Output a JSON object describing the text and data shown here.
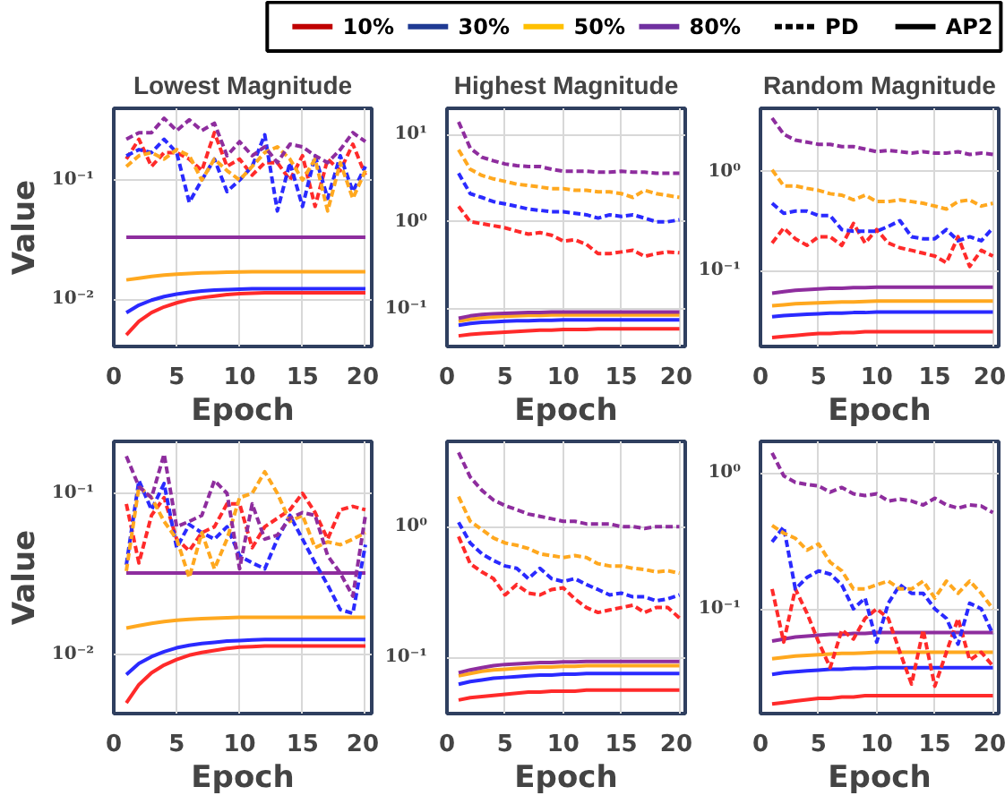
{
  "chart_data": [
    {
      "type": "other",
      "legend": "top",
      "series": [
        {
          "name": "10%",
          "color": "#c00000",
          "line_style": "solid"
        },
        {
          "name": "30%",
          "color": "#1f3a93",
          "line_style": "solid"
        },
        {
          "name": "50%",
          "color": "#ffc000",
          "line_style": "solid"
        },
        {
          "name": "80%",
          "color": "#7030a0",
          "line_style": "solid"
        },
        {
          "name": "PD",
          "color": "#000000",
          "line_style": "dashed"
        },
        {
          "name": "AP2",
          "color": "#000000",
          "line_style": "solid"
        }
      ]
    },
    {
      "type": "line",
      "title": "Lowest Magnitude",
      "xlabel": "Epoch",
      "ylabel": "Value",
      "log": true,
      "grid": true,
      "x": [
        1,
        2,
        3,
        4,
        5,
        6,
        7,
        8,
        9,
        10,
        11,
        12,
        13,
        14,
        15,
        16,
        17,
        18,
        19,
        20
      ],
      "xlim": [
        0,
        20.5
      ],
      "xticks": [
        0,
        5,
        10,
        15,
        20
      ],
      "ylim": [
        0.004,
        0.4
      ],
      "yticks": [
        {
          "value": 0.01,
          "label": "10⁻²"
        },
        {
          "value": 0.1,
          "label": "10⁻¹"
        }
      ],
      "series": [
        {
          "color": "#ff2a2a",
          "line_style": "dashed",
          "values": [
            0.15,
            0.22,
            0.13,
            0.17,
            0.17,
            0.15,
            0.12,
            0.25,
            0.13,
            0.15,
            0.11,
            0.14,
            0.14,
            0.1,
            0.16,
            0.06,
            0.15,
            0.12,
            0.2,
            0.11
          ]
        },
        {
          "color": "#2a2aff",
          "line_style": "dashed",
          "values": [
            0.16,
            0.18,
            0.17,
            0.22,
            0.17,
            0.065,
            0.1,
            0.15,
            0.08,
            0.1,
            0.13,
            0.24,
            0.055,
            0.14,
            0.06,
            0.16,
            0.07,
            0.16,
            0.08,
            0.13
          ]
        },
        {
          "color": "#ffa81f",
          "line_style": "dashed",
          "values": [
            0.13,
            0.16,
            0.17,
            0.15,
            0.18,
            0.16,
            0.1,
            0.15,
            0.12,
            0.1,
            0.13,
            0.17,
            0.19,
            0.15,
            0.1,
            0.15,
            0.055,
            0.14,
            0.07,
            0.12
          ]
        },
        {
          "color": "#8e2d9e",
          "line_style": "dashed",
          "values": [
            0.22,
            0.25,
            0.25,
            0.33,
            0.26,
            0.32,
            0.26,
            0.3,
            0.16,
            0.21,
            0.16,
            0.19,
            0.14,
            0.2,
            0.19,
            0.16,
            0.14,
            0.18,
            0.25,
            0.21
          ]
        },
        {
          "color": "#ff2a2a",
          "line_style": "solid",
          "values": [
            0.005,
            0.0065,
            0.0077,
            0.0086,
            0.0093,
            0.0099,
            0.0103,
            0.0106,
            0.0109,
            0.0111,
            0.0112,
            0.0113,
            0.0113,
            0.0113,
            0.0113,
            0.0113,
            0.0113,
            0.0113,
            0.0113,
            0.0113
          ]
        },
        {
          "color": "#2a2aff",
          "line_style": "solid",
          "values": [
            0.0077,
            0.0089,
            0.0098,
            0.0105,
            0.011,
            0.0114,
            0.0117,
            0.0119,
            0.012,
            0.0121,
            0.0122,
            0.0122,
            0.0122,
            0.0122,
            0.0122,
            0.0122,
            0.0122,
            0.0122,
            0.0122,
            0.0122
          ]
        },
        {
          "color": "#ffa81f",
          "line_style": "solid",
          "values": [
            0.0145,
            0.015,
            0.0155,
            0.0159,
            0.0162,
            0.0164,
            0.0166,
            0.0167,
            0.0168,
            0.0169,
            0.017,
            0.017,
            0.017,
            0.017,
            0.017,
            0.017,
            0.017,
            0.017,
            0.017,
            0.017
          ]
        },
        {
          "color": "#8e2d9e",
          "line_style": "solid",
          "values": [
            0.033,
            0.033,
            0.033,
            0.033,
            0.033,
            0.033,
            0.033,
            0.033,
            0.033,
            0.033,
            0.033,
            0.033,
            0.033,
            0.033,
            0.033,
            0.033,
            0.033,
            0.033,
            0.033,
            0.033
          ]
        }
      ]
    },
    {
      "type": "line",
      "title": "Highest Magnitude",
      "xlabel": "Epoch",
      "log": true,
      "grid": true,
      "x": [
        1,
        2,
        3,
        4,
        5,
        6,
        7,
        8,
        9,
        10,
        11,
        12,
        13,
        14,
        15,
        16,
        17,
        18,
        19,
        20
      ],
      "xlim": [
        0,
        20.5
      ],
      "xticks": [
        0,
        5,
        10,
        15,
        20
      ],
      "ylim": [
        0.037,
        20
      ],
      "yticks": [
        {
          "value": 0.1,
          "label": "10⁻¹"
        },
        {
          "value": 1,
          "label": "10⁰"
        },
        {
          "value": 10,
          "label": "10¹"
        }
      ],
      "series": [
        {
          "color": "#ff2a2a",
          "line_style": "dashed",
          "values": [
            1.5,
            1.0,
            0.95,
            0.9,
            0.85,
            0.78,
            0.72,
            0.75,
            0.7,
            0.6,
            0.62,
            0.55,
            0.43,
            0.43,
            0.45,
            0.47,
            0.4,
            0.43,
            0.45,
            0.44
          ]
        },
        {
          "color": "#2a2aff",
          "line_style": "dashed",
          "values": [
            3.6,
            2.1,
            1.9,
            1.7,
            1.6,
            1.5,
            1.4,
            1.35,
            1.3,
            1.3,
            1.25,
            1.2,
            1.1,
            1.2,
            1.15,
            1.2,
            1.1,
            1.0,
            1.0,
            1.05
          ]
        },
        {
          "color": "#ffa81f",
          "line_style": "dashed",
          "values": [
            6.7,
            4.0,
            3.4,
            3.1,
            2.9,
            2.7,
            2.6,
            2.5,
            2.4,
            2.4,
            2.3,
            2.3,
            2.2,
            2.2,
            2.1,
            1.9,
            2.3,
            2.1,
            2.0,
            1.9
          ]
        },
        {
          "color": "#8e2d9e",
          "line_style": "dashed",
          "values": [
            14,
            7,
            5.5,
            5,
            4.6,
            4.4,
            4.3,
            4.3,
            4,
            3.8,
            3.8,
            3.8,
            3.7,
            3.7,
            3.8,
            3.7,
            3.7,
            3.6,
            3.6,
            3.6
          ]
        },
        {
          "color": "#ff2a2a",
          "line_style": "solid",
          "values": [
            0.049,
            0.051,
            0.052,
            0.053,
            0.054,
            0.055,
            0.056,
            0.057,
            0.057,
            0.058,
            0.058,
            0.058,
            0.059,
            0.059,
            0.059,
            0.059,
            0.059,
            0.059,
            0.059,
            0.059
          ]
        },
        {
          "color": "#2a2aff",
          "line_style": "solid",
          "values": [
            0.065,
            0.068,
            0.07,
            0.071,
            0.072,
            0.073,
            0.073,
            0.074,
            0.074,
            0.075,
            0.075,
            0.075,
            0.075,
            0.075,
            0.075,
            0.075,
            0.075,
            0.075,
            0.075,
            0.075
          ]
        },
        {
          "color": "#ffa81f",
          "line_style": "solid",
          "values": [
            0.072,
            0.076,
            0.079,
            0.081,
            0.082,
            0.083,
            0.084,
            0.084,
            0.085,
            0.085,
            0.085,
            0.085,
            0.085,
            0.085,
            0.085,
            0.085,
            0.085,
            0.085,
            0.085,
            0.085
          ]
        },
        {
          "color": "#8e2d9e",
          "line_style": "solid",
          "values": [
            0.078,
            0.083,
            0.086,
            0.088,
            0.089,
            0.09,
            0.091,
            0.091,
            0.092,
            0.092,
            0.092,
            0.092,
            0.092,
            0.092,
            0.092,
            0.092,
            0.092,
            0.092,
            0.092,
            0.092
          ]
        }
      ]
    },
    {
      "type": "line",
      "title": "Random Magnitude",
      "xlabel": "Epoch",
      "log": true,
      "grid": true,
      "x": [
        1,
        2,
        3,
        4,
        5,
        6,
        7,
        8,
        9,
        10,
        11,
        12,
        13,
        14,
        15,
        16,
        17,
        18,
        19,
        20
      ],
      "xlim": [
        0,
        20.5
      ],
      "xticks": [
        0,
        5,
        10,
        15,
        20
      ],
      "ylim": [
        0.017,
        4.4
      ],
      "yticks": [
        {
          "value": 0.1,
          "label": "10⁻¹"
        },
        {
          "value": 1,
          "label": "10⁰"
        }
      ],
      "series": [
        {
          "color": "#ff2a2a",
          "line_style": "dashed",
          "values": [
            0.19,
            0.27,
            0.21,
            0.18,
            0.22,
            0.22,
            0.18,
            0.3,
            0.19,
            0.26,
            0.19,
            0.17,
            0.16,
            0.15,
            0.14,
            0.12,
            0.22,
            0.11,
            0.16,
            0.14
          ]
        },
        {
          "color": "#2a2aff",
          "line_style": "dashed",
          "values": [
            0.48,
            0.38,
            0.4,
            0.4,
            0.36,
            0.36,
            0.26,
            0.25,
            0.25,
            0.25,
            0.28,
            0.32,
            0.22,
            0.21,
            0.21,
            0.26,
            0.2,
            0.22,
            0.2,
            0.27
          ]
        },
        {
          "color": "#ffa81f",
          "line_style": "dashed",
          "values": [
            1.05,
            0.72,
            0.72,
            0.68,
            0.65,
            0.6,
            0.58,
            0.52,
            0.58,
            0.5,
            0.5,
            0.52,
            0.5,
            0.48,
            0.45,
            0.42,
            0.5,
            0.52,
            0.45,
            0.48
          ]
        },
        {
          "color": "#8e2d9e",
          "line_style": "dashed",
          "values": [
            3.5,
            2.4,
            2.1,
            2.0,
            1.9,
            1.9,
            1.8,
            1.8,
            1.7,
            1.6,
            1.65,
            1.6,
            1.55,
            1.6,
            1.55,
            1.55,
            1.6,
            1.5,
            1.55,
            1.5
          ]
        },
        {
          "color": "#ff2a2a",
          "line_style": "solid",
          "values": [
            0.021,
            0.0215,
            0.022,
            0.0225,
            0.023,
            0.023,
            0.0235,
            0.0235,
            0.024,
            0.024,
            0.024,
            0.024,
            0.024,
            0.024,
            0.024,
            0.024,
            0.024,
            0.024,
            0.024,
            0.024
          ]
        },
        {
          "color": "#2a2aff",
          "line_style": "solid",
          "values": [
            0.034,
            0.035,
            0.0355,
            0.036,
            0.0365,
            0.037,
            0.037,
            0.0375,
            0.0375,
            0.038,
            0.038,
            0.038,
            0.038,
            0.038,
            0.038,
            0.038,
            0.038,
            0.038,
            0.038,
            0.038
          ]
        },
        {
          "color": "#ffa81f",
          "line_style": "solid",
          "values": [
            0.044,
            0.045,
            0.046,
            0.0465,
            0.047,
            0.0475,
            0.048,
            0.048,
            0.0485,
            0.049,
            0.049,
            0.049,
            0.049,
            0.049,
            0.049,
            0.049,
            0.049,
            0.049,
            0.049,
            0.049
          ]
        },
        {
          "color": "#8e2d9e",
          "line_style": "solid",
          "values": [
            0.059,
            0.061,
            0.063,
            0.064,
            0.065,
            0.066,
            0.066,
            0.067,
            0.067,
            0.068,
            0.068,
            0.068,
            0.068,
            0.068,
            0.068,
            0.068,
            0.068,
            0.068,
            0.068,
            0.068
          ]
        }
      ]
    },
    {
      "type": "line",
      "xlabel": "Epoch",
      "ylabel": "Value",
      "log": true,
      "grid": true,
      "x": [
        1,
        2,
        3,
        4,
        5,
        6,
        7,
        8,
        9,
        10,
        11,
        12,
        13,
        14,
        15,
        16,
        17,
        18,
        19,
        20
      ],
      "xlim": [
        0,
        20.5
      ],
      "xticks": [
        0,
        5,
        10,
        15,
        20
      ],
      "ylim": [
        0.0043,
        0.21
      ],
      "yticks": [
        {
          "value": 0.01,
          "label": "10⁻²"
        },
        {
          "value": 0.1,
          "label": "10⁻¹"
        }
      ],
      "series": [
        {
          "color": "#ff2a2a",
          "line_style": "dashed",
          "values": [
            0.086,
            0.037,
            0.073,
            0.094,
            0.052,
            0.044,
            0.057,
            0.062,
            0.086,
            0.086,
            0.046,
            0.062,
            0.07,
            0.079,
            0.1,
            0.076,
            0.052,
            0.079,
            0.083,
            0.079
          ]
        },
        {
          "color": "#2a2aff",
          "line_style": "dashed",
          "values": [
            0.036,
            0.12,
            0.079,
            0.115,
            0.046,
            0.064,
            0.057,
            0.052,
            0.062,
            0.041,
            0.037,
            0.034,
            0.052,
            0.073,
            0.052,
            0.037,
            0.027,
            0.019,
            0.018,
            0.048
          ]
        },
        {
          "color": "#ffa81f",
          "line_style": "dashed",
          "values": [
            0.033,
            0.11,
            0.094,
            0.067,
            0.052,
            0.03,
            0.057,
            0.034,
            0.052,
            0.094,
            0.1,
            0.136,
            0.1,
            0.067,
            0.073,
            0.046,
            0.05,
            0.048,
            0.052,
            0.057
          ]
        },
        {
          "color": "#8e2d9e",
          "line_style": "dashed",
          "values": [
            0.17,
            0.11,
            0.094,
            0.175,
            0.062,
            0.067,
            0.073,
            0.12,
            0.1,
            0.034,
            0.086,
            0.052,
            0.055,
            0.07,
            0.076,
            0.073,
            0.041,
            0.032,
            0.023,
            0.073
          ]
        },
        {
          "color": "#ff2a2a",
          "line_style": "solid",
          "values": [
            0.005,
            0.0065,
            0.0077,
            0.0086,
            0.0093,
            0.0099,
            0.0103,
            0.0106,
            0.0109,
            0.0111,
            0.0112,
            0.0113,
            0.0113,
            0.0113,
            0.0113,
            0.0113,
            0.0113,
            0.0113,
            0.0113,
            0.0113
          ]
        },
        {
          "color": "#2a2aff",
          "line_style": "solid",
          "values": [
            0.0075,
            0.0088,
            0.0097,
            0.0104,
            0.011,
            0.0114,
            0.0117,
            0.0119,
            0.0121,
            0.0122,
            0.0123,
            0.0124,
            0.0124,
            0.0124,
            0.0124,
            0.0124,
            0.0124,
            0.0124,
            0.0124,
            0.0124
          ]
        },
        {
          "color": "#ffa81f",
          "line_style": "solid",
          "values": [
            0.0146,
            0.0151,
            0.0156,
            0.016,
            0.0163,
            0.0165,
            0.0167,
            0.0168,
            0.0169,
            0.017,
            0.017,
            0.017,
            0.017,
            0.017,
            0.017,
            0.017,
            0.017,
            0.017,
            0.017,
            0.017
          ]
        },
        {
          "color": "#8e2d9e",
          "line_style": "solid",
          "values": [
            0.032,
            0.032,
            0.032,
            0.032,
            0.032,
            0.032,
            0.032,
            0.032,
            0.032,
            0.032,
            0.032,
            0.032,
            0.032,
            0.032,
            0.032,
            0.032,
            0.032,
            0.032,
            0.032,
            0.032
          ]
        }
      ]
    },
    {
      "type": "line",
      "xlabel": "Epoch",
      "log": true,
      "grid": true,
      "x": [
        1,
        2,
        3,
        4,
        5,
        6,
        7,
        8,
        9,
        10,
        11,
        12,
        13,
        14,
        15,
        16,
        17,
        18,
        19,
        20
      ],
      "xlim": [
        0,
        20.5
      ],
      "xticks": [
        0,
        5,
        10,
        15,
        20
      ],
      "ylim": [
        0.037,
        4.5
      ],
      "yticks": [
        {
          "value": 0.1,
          "label": "10⁻¹"
        },
        {
          "value": 1,
          "label": "10⁰"
        }
      ],
      "series": [
        {
          "color": "#ff2a2a",
          "line_style": "dashed",
          "values": [
            0.84,
            0.52,
            0.45,
            0.4,
            0.3,
            0.36,
            0.31,
            0.3,
            0.33,
            0.34,
            0.28,
            0.24,
            0.22,
            0.23,
            0.24,
            0.25,
            0.22,
            0.24,
            0.24,
            0.2
          ]
        },
        {
          "color": "#2a2aff",
          "line_style": "dashed",
          "values": [
            1.08,
            0.75,
            0.62,
            0.55,
            0.5,
            0.48,
            0.4,
            0.48,
            0.4,
            0.38,
            0.4,
            0.36,
            0.33,
            0.3,
            0.31,
            0.29,
            0.29,
            0.27,
            0.28,
            0.3
          ]
        },
        {
          "color": "#ffa81f",
          "line_style": "dashed",
          "values": [
            1.7,
            1.1,
            0.95,
            0.82,
            0.75,
            0.72,
            0.68,
            0.62,
            0.6,
            0.58,
            0.6,
            0.58,
            0.52,
            0.5,
            0.5,
            0.48,
            0.47,
            0.45,
            0.46,
            0.44
          ]
        },
        {
          "color": "#8e2d9e",
          "line_style": "dashed",
          "values": [
            3.7,
            2.4,
            1.9,
            1.6,
            1.45,
            1.35,
            1.25,
            1.2,
            1.15,
            1.1,
            1.1,
            1.05,
            1.05,
            1.05,
            1.0,
            1.0,
            0.97,
            1.0,
            1.0,
            1.0
          ]
        },
        {
          "color": "#ff2a2a",
          "line_style": "solid",
          "values": [
            0.047,
            0.049,
            0.05,
            0.051,
            0.052,
            0.053,
            0.054,
            0.054,
            0.055,
            0.055,
            0.055,
            0.056,
            0.056,
            0.056,
            0.056,
            0.056,
            0.056,
            0.056,
            0.056,
            0.056
          ]
        },
        {
          "color": "#2a2aff",
          "line_style": "solid",
          "values": [
            0.062,
            0.065,
            0.067,
            0.069,
            0.07,
            0.071,
            0.072,
            0.073,
            0.073,
            0.074,
            0.074,
            0.075,
            0.075,
            0.075,
            0.075,
            0.075,
            0.075,
            0.075,
            0.075,
            0.075
          ]
        },
        {
          "color": "#ffa81f",
          "line_style": "solid",
          "values": [
            0.072,
            0.075,
            0.078,
            0.08,
            0.081,
            0.082,
            0.083,
            0.084,
            0.084,
            0.085,
            0.085,
            0.086,
            0.086,
            0.086,
            0.086,
            0.086,
            0.086,
            0.086,
            0.086,
            0.086
          ]
        },
        {
          "color": "#8e2d9e",
          "line_style": "solid",
          "values": [
            0.076,
            0.08,
            0.083,
            0.086,
            0.088,
            0.089,
            0.09,
            0.091,
            0.091,
            0.092,
            0.092,
            0.093,
            0.093,
            0.093,
            0.093,
            0.093,
            0.093,
            0.093,
            0.093,
            0.093
          ]
        }
      ]
    },
    {
      "type": "line",
      "xlabel": "Epoch",
      "log": true,
      "grid": true,
      "x": [
        1,
        2,
        3,
        4,
        5,
        6,
        7,
        8,
        9,
        10,
        11,
        12,
        13,
        14,
        15,
        16,
        17,
        18,
        19,
        20
      ],
      "xlim": [
        0,
        20.5
      ],
      "xticks": [
        0,
        5,
        10,
        15,
        20
      ],
      "ylim": [
        0.017,
        1.7
      ],
      "yticks": [
        {
          "value": 0.1,
          "label": "10⁻¹"
        },
        {
          "value": 1,
          "label": "10⁰"
        }
      ],
      "series": [
        {
          "color": "#ff2a2a",
          "line_style": "dashed",
          "values": [
            0.14,
            0.057,
            0.14,
            0.093,
            0.057,
            0.037,
            0.07,
            0.06,
            0.085,
            0.1,
            0.085,
            0.048,
            0.028,
            0.07,
            0.027,
            0.048,
            0.085,
            0.042,
            0.048,
            0.038
          ]
        },
        {
          "color": "#2a2aff",
          "line_style": "dashed",
          "values": [
            0.31,
            0.4,
            0.14,
            0.17,
            0.19,
            0.18,
            0.15,
            0.1,
            0.12,
            0.057,
            0.11,
            0.15,
            0.13,
            0.13,
            0.1,
            0.085,
            0.055,
            0.11,
            0.1,
            0.065
          ]
        },
        {
          "color": "#ffa81f",
          "line_style": "dashed",
          "values": [
            0.41,
            0.36,
            0.33,
            0.27,
            0.3,
            0.22,
            0.19,
            0.14,
            0.14,
            0.15,
            0.16,
            0.14,
            0.14,
            0.16,
            0.12,
            0.16,
            0.13,
            0.16,
            0.13,
            0.1
          ]
        },
        {
          "color": "#8e2d9e",
          "line_style": "dashed",
          "values": [
            1.4,
            0.95,
            0.85,
            0.82,
            0.8,
            0.72,
            0.78,
            0.7,
            0.68,
            0.7,
            0.62,
            0.64,
            0.62,
            0.58,
            0.65,
            0.58,
            0.55,
            0.58,
            0.57,
            0.51
          ]
        },
        {
          "color": "#ff2a2a",
          "line_style": "solid",
          "values": [
            0.02,
            0.0205,
            0.021,
            0.0215,
            0.022,
            0.022,
            0.0225,
            0.0225,
            0.023,
            0.023,
            0.023,
            0.023,
            0.023,
            0.023,
            0.023,
            0.023,
            0.023,
            0.023,
            0.023,
            0.023
          ]
        },
        {
          "color": "#2a2aff",
          "line_style": "solid",
          "values": [
            0.033,
            0.034,
            0.0345,
            0.035,
            0.0355,
            0.036,
            0.036,
            0.0365,
            0.0365,
            0.037,
            0.037,
            0.037,
            0.037,
            0.037,
            0.037,
            0.037,
            0.037,
            0.037,
            0.037,
            0.037
          ]
        },
        {
          "color": "#ffa81f",
          "line_style": "solid",
          "values": [
            0.043,
            0.044,
            0.045,
            0.0455,
            0.046,
            0.0465,
            0.047,
            0.047,
            0.0475,
            0.048,
            0.048,
            0.048,
            0.048,
            0.048,
            0.048,
            0.048,
            0.048,
            0.048,
            0.048,
            0.048
          ]
        },
        {
          "color": "#8e2d9e",
          "line_style": "solid",
          "values": [
            0.058,
            0.06,
            0.062,
            0.063,
            0.064,
            0.065,
            0.065,
            0.066,
            0.066,
            0.067,
            0.067,
            0.067,
            0.067,
            0.067,
            0.067,
            0.067,
            0.067,
            0.067,
            0.067,
            0.067
          ]
        }
      ]
    }
  ]
}
